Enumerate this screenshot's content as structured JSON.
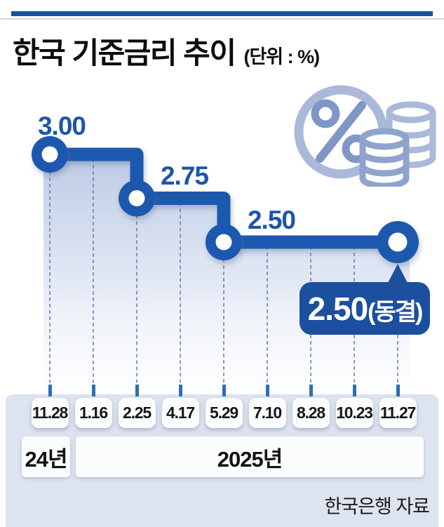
{
  "header": {
    "title": "한국 기준금리 추이",
    "unit": "(단위 : %)"
  },
  "chart_data": {
    "type": "line",
    "subtype": "step-after",
    "title": "한국 기준금리 추이",
    "unit": "%",
    "x": [
      "11.28",
      "1.16",
      "2.25",
      "4.17",
      "5.29",
      "7.10",
      "8.28",
      "10.23",
      "11.27"
    ],
    "values": [
      3.0,
      3.0,
      2.75,
      2.75,
      2.5,
      2.5,
      2.5,
      2.5,
      2.5
    ],
    "change_point_indices": [
      0,
      2,
      4
    ],
    "final_point_index": 8,
    "point_labels": [
      "3.00",
      "2.75",
      "2.50"
    ],
    "final_label": {
      "rate": "2.50",
      "note": "(동결)"
    },
    "ylim": [
      2.4,
      3.1
    ],
    "y_axis_visible": false,
    "grid": "vertical-dashed",
    "year_groups": [
      {
        "label": "24년",
        "from": 0,
        "to": 0
      },
      {
        "label": "2025년",
        "from": 1,
        "to": 8
      }
    ]
  },
  "source": "한국은행 자료",
  "icon": {
    "name": "percent-and-coins"
  },
  "colors": {
    "line": "#1b58ad",
    "badge": "#1c4f9e",
    "point_label": "#1d56a9",
    "top_rule": "#16519e",
    "panel": "#dde3ef",
    "tick": "#2e6db8",
    "dash": "#5f77a6",
    "area_top": "#bcc9e5",
    "icon_light": "#aab9d9",
    "icon_mid": "#8096c6"
  }
}
